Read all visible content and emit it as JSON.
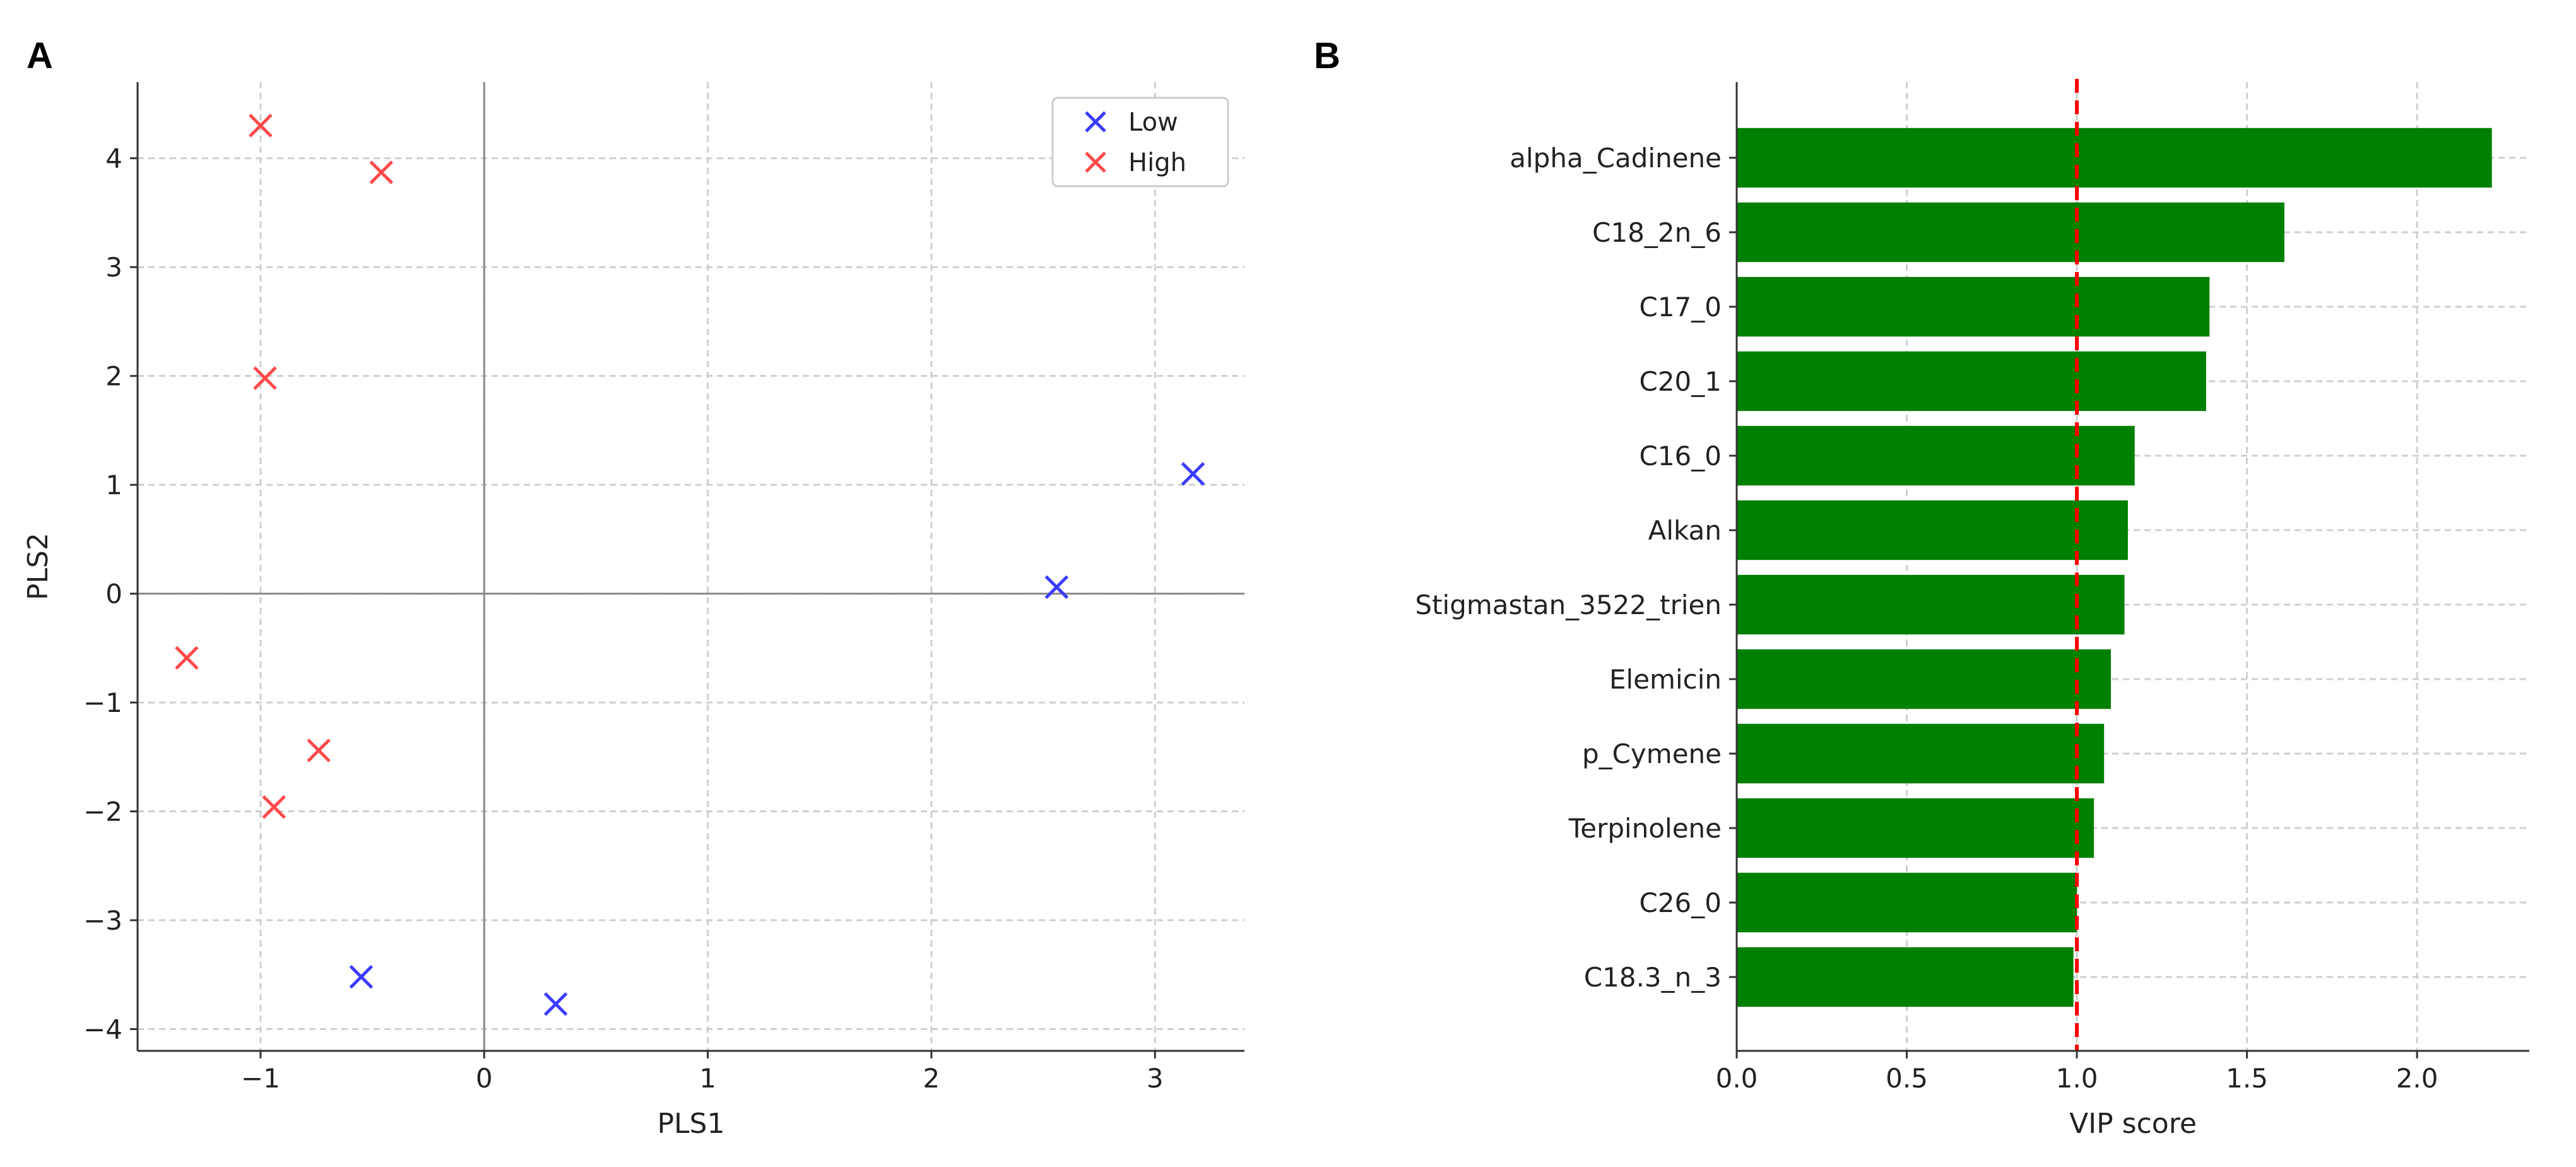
{
  "panels": {
    "a": {
      "label": "A"
    },
    "b": {
      "label": "B"
    }
  },
  "chart_data": [
    {
      "type": "scatter",
      "title": "",
      "xlabel": "PLS1",
      "ylabel": "PLS2",
      "xlim": [
        -1.55,
        3.4
      ],
      "ylim": [
        -4.2,
        4.7
      ],
      "xticks": [
        -1,
        0,
        1,
        2,
        3
      ],
      "yticks": [
        -4,
        -3,
        -2,
        -1,
        0,
        1,
        2,
        3,
        4
      ],
      "xtick_labels": [
        "−1",
        "0",
        "1",
        "2",
        "3"
      ],
      "ytick_labels": [
        "−4",
        "−3",
        "−2",
        "−1",
        "0",
        "1",
        "2",
        "3",
        "4"
      ],
      "grid": true,
      "reference_lines": {
        "x": 0,
        "y": 0
      },
      "legend": {
        "placement": "top-right",
        "entries": [
          "Low",
          "High"
        ]
      },
      "marker": "x",
      "series": [
        {
          "name": "Low",
          "color": "#3b3bff",
          "points": [
            [
              3.17,
              1.1
            ],
            [
              2.56,
              0.06
            ],
            [
              -0.55,
              -3.52
            ],
            [
              0.32,
              -3.77
            ]
          ]
        },
        {
          "name": "High",
          "color": "#ff4a4a",
          "points": [
            [
              -1.0,
              4.3
            ],
            [
              -0.46,
              3.87
            ],
            [
              -0.98,
              1.98
            ],
            [
              -1.33,
              -0.59
            ],
            [
              -0.74,
              -1.44
            ],
            [
              -0.94,
              -1.96
            ]
          ]
        }
      ]
    },
    {
      "type": "bar",
      "orientation": "horizontal",
      "title": "",
      "xlabel": "VIP score",
      "ylabel": "",
      "xlim": [
        0,
        2.33
      ],
      "xticks": [
        0.0,
        0.5,
        1.0,
        1.5,
        2.0
      ],
      "xtick_labels": [
        "0.0",
        "0.5",
        "1.0",
        "1.5",
        "2.0"
      ],
      "grid": true,
      "bar_color": "#008000",
      "threshold": {
        "value": 1.0,
        "color": "#ff0000",
        "style": "dashed"
      },
      "categories": [
        "alpha_Cadinene",
        "C18_2n_6",
        "C17_0",
        "C20_1",
        "C16_0",
        "Alkan",
        "Stigmastan_3522_trien",
        "Elemicin",
        "p_Cymene",
        "Terpinolene",
        "C26_0",
        "C18.3_n_3"
      ],
      "values": [
        2.22,
        1.61,
        1.39,
        1.38,
        1.17,
        1.15,
        1.14,
        1.1,
        1.08,
        1.05,
        1.0,
        0.99
      ]
    }
  ]
}
